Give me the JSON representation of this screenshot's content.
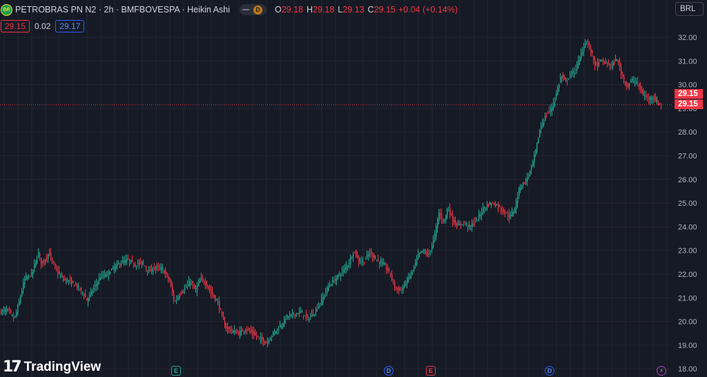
{
  "header": {
    "logo_text": "BR",
    "title": "PETROBRAS PN N2 · 2h · BMFBOVESPA · Heikin Ashi",
    "toggle_label": "D",
    "ohlc": [
      {
        "key": "O",
        "value": "29.18"
      },
      {
        "key": "H",
        "value": "29.18"
      },
      {
        "key": "L",
        "value": "29.13"
      },
      {
        "key": "C",
        "value": "29.15"
      }
    ],
    "change": "+0.04 (+0.14%)"
  },
  "tags": {
    "sell": "29.15",
    "spread": "0.02",
    "buy": "29.17"
  },
  "currency_button": "BRL",
  "price_tags": [
    "29.15",
    "29.15"
  ],
  "branding": {
    "icon": "17",
    "name": "TradingView"
  },
  "events": [
    {
      "label": "E",
      "kind": "earnings",
      "icon": "earnings-icon"
    },
    {
      "label": "D",
      "kind": "dividend",
      "icon": "dividend-icon"
    },
    {
      "label": "E",
      "kind": "earnings",
      "icon": "earnings-icon"
    },
    {
      "label": "D",
      "kind": "dividend",
      "icon": "dividend-icon"
    },
    {
      "label": "⚡",
      "kind": "split",
      "icon": "lightning-icon"
    }
  ],
  "colors": {
    "background": "#161a25",
    "grid": "#232632",
    "up": "#22ab94",
    "down": "#f23645",
    "price_line": "#f23645"
  },
  "chart_data": {
    "type": "candlestick",
    "title": "PETROBRAS PN N2 · 2h · BMFBOVESPA · Heikin Ashi",
    "y_axis": {
      "position": "right",
      "ylim": [
        17.9,
        32.6
      ],
      "ticks": [
        "32.00",
        "31.00",
        "30.00",
        "29.00",
        "28.00",
        "27.00",
        "26.00",
        "25.00",
        "24.00",
        "23.00",
        "22.00",
        "21.00",
        "20.00",
        "19.00",
        "18.00"
      ]
    },
    "grid": true,
    "last_price": 29.15,
    "close_path": [
      [
        0,
        20.4
      ],
      [
        10,
        20.5
      ],
      [
        20,
        20.1
      ],
      [
        25,
        20.6
      ],
      [
        35,
        21.8
      ],
      [
        45,
        22.0
      ],
      [
        55,
        22.9
      ],
      [
        60,
        22.4
      ],
      [
        70,
        22.9
      ],
      [
        80,
        22.2
      ],
      [
        90,
        21.8
      ],
      [
        100,
        21.7
      ],
      [
        110,
        21.5
      ],
      [
        120,
        21.2
      ],
      [
        125,
        20.9
      ],
      [
        135,
        21.4
      ],
      [
        145,
        21.9
      ],
      [
        155,
        22.0
      ],
      [
        165,
        22.3
      ],
      [
        175,
        22.5
      ],
      [
        185,
        22.6
      ],
      [
        195,
        22.4
      ],
      [
        205,
        22.5
      ],
      [
        215,
        22.1
      ],
      [
        225,
        22.3
      ],
      [
        235,
        22.2
      ],
      [
        245,
        21.7
      ],
      [
        252,
        20.8
      ],
      [
        260,
        21.2
      ],
      [
        268,
        21.4
      ],
      [
        275,
        21.7
      ],
      [
        282,
        21.3
      ],
      [
        290,
        21.8
      ],
      [
        298,
        21.6
      ],
      [
        305,
        21.2
      ],
      [
        315,
        20.8
      ],
      [
        325,
        19.8
      ],
      [
        335,
        19.6
      ],
      [
        345,
        19.5
      ],
      [
        355,
        19.7
      ],
      [
        365,
        19.5
      ],
      [
        375,
        19.3
      ],
      [
        385,
        19.1
      ],
      [
        395,
        19.5
      ],
      [
        405,
        19.8
      ],
      [
        415,
        20.2
      ],
      [
        425,
        20.3
      ],
      [
        435,
        20.4
      ],
      [
        445,
        20.1
      ],
      [
        455,
        20.4
      ],
      [
        465,
        20.9
      ],
      [
        475,
        21.5
      ],
      [
        485,
        21.8
      ],
      [
        495,
        22.1
      ],
      [
        505,
        22.5
      ],
      [
        512,
        23.0
      ],
      [
        518,
        22.6
      ],
      [
        525,
        22.5
      ],
      [
        535,
        22.9
      ],
      [
        545,
        22.6
      ],
      [
        555,
        22.4
      ],
      [
        565,
        22.0
      ],
      [
        572,
        21.4
      ],
      [
        580,
        21.3
      ],
      [
        590,
        21.8
      ],
      [
        598,
        22.2
      ],
      [
        605,
        22.8
      ],
      [
        612,
        23.0
      ],
      [
        620,
        22.8
      ],
      [
        628,
        23.5
      ],
      [
        635,
        24.6
      ],
      [
        642,
        24.2
      ],
      [
        648,
        24.8
      ],
      [
        655,
        24.3
      ],
      [
        662,
        24.0
      ],
      [
        670,
        24.2
      ],
      [
        680,
        24.0
      ],
      [
        690,
        24.3
      ],
      [
        700,
        24.8
      ],
      [
        710,
        25.0
      ],
      [
        720,
        24.9
      ],
      [
        730,
        24.6
      ],
      [
        738,
        24.4
      ],
      [
        745,
        24.8
      ],
      [
        752,
        25.7
      ],
      [
        760,
        25.9
      ],
      [
        768,
        26.4
      ],
      [
        775,
        27.2
      ],
      [
        782,
        28.2
      ],
      [
        790,
        28.7
      ],
      [
        798,
        29.0
      ],
      [
        805,
        29.6
      ],
      [
        812,
        30.4
      ],
      [
        818,
        30.1
      ],
      [
        825,
        30.4
      ],
      [
        832,
        30.6
      ],
      [
        840,
        31.2
      ],
      [
        848,
        31.9
      ],
      [
        855,
        31.4
      ],
      [
        862,
        30.8
      ],
      [
        870,
        31.0
      ],
      [
        878,
        30.9
      ],
      [
        885,
        30.8
      ],
      [
        893,
        31.1
      ],
      [
        900,
        30.4
      ],
      [
        908,
        29.9
      ],
      [
        915,
        30.2
      ],
      [
        922,
        30.1
      ],
      [
        930,
        29.6
      ],
      [
        938,
        29.4
      ],
      [
        945,
        29.5
      ],
      [
        952,
        29.2
      ],
      [
        958,
        29.15
      ]
    ]
  }
}
